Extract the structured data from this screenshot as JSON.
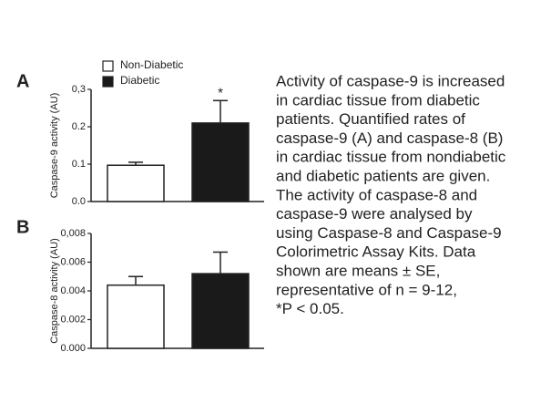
{
  "chart_data": [
    {
      "type": "bar",
      "panel": "A",
      "ylabel": "Caspase-9 activity (AU)",
      "ylim": [
        0,
        0.3
      ],
      "yticks": [
        {
          "value": 0,
          "label": "0.0"
        },
        0.1,
        0.2,
        {
          "value": 0.3,
          "label": "0,3"
        }
      ],
      "series": [
        {
          "name": "Non-Diabetic",
          "color": "#ffffff",
          "values": [
            0.097
          ],
          "errors": [
            0.008
          ]
        },
        {
          "name": "Diabetic",
          "color": "#1a1a1a",
          "values": [
            0.21
          ],
          "errors": [
            0.06
          ]
        }
      ],
      "annotations": [
        {
          "text": "*",
          "series": 1
        }
      ]
    },
    {
      "type": "bar",
      "panel": "B",
      "ylabel": "Caspase-8 activity (AU)",
      "ylim": [
        0,
        0.008
      ],
      "yticks": [
        {
          "value": 0,
          "label": "0.000"
        },
        0.002,
        0.004,
        0.006,
        {
          "value": 0.008,
          "label": "0,008"
        }
      ],
      "series": [
        {
          "color": "#ffffff",
          "values": [
            0.0044
          ],
          "errors": [
            0.0006
          ]
        },
        {
          "color": "#1a1a1a",
          "values": [
            0.0052
          ],
          "errors": [
            0.0015
          ]
        }
      ]
    }
  ],
  "caption": [
    "Activity of caspase-9 is increased",
    "in cardiac tissue from diabetic",
    "patients. Quantified rates of",
    "caspase-9 (A) and caspase-8 (B)",
    "in cardiac tissue from nondiabetic",
    "and diabetic patients are given.",
    "The activity of caspase-8 and",
    "caspase-9 were analysed by",
    "using Caspase-8 and Caspase-9",
    "Colorimetric Assay Kits. Data",
    "shown are means ±  SE,",
    "representative of n = 9-12,",
    "*P < 0.05."
  ]
}
